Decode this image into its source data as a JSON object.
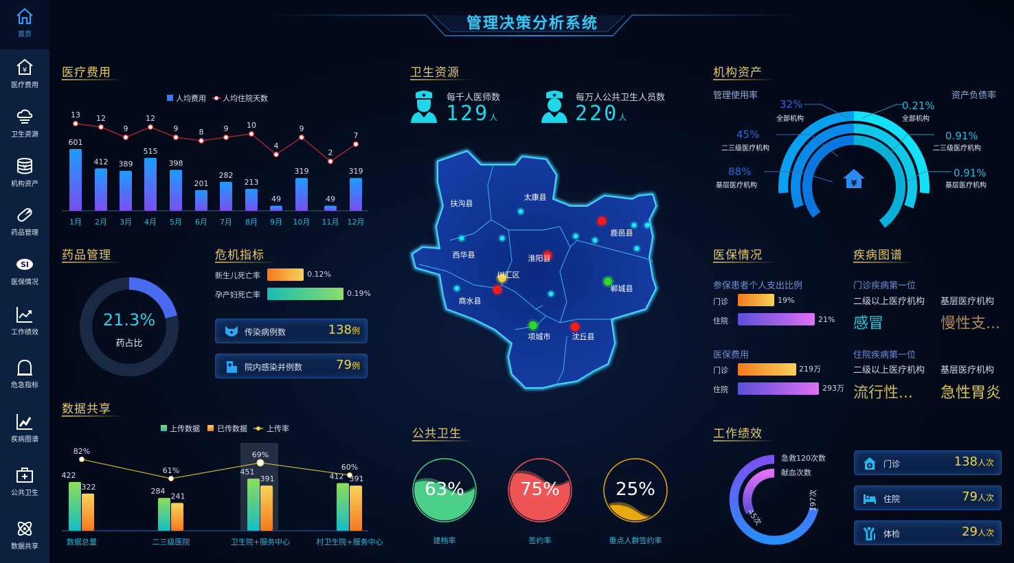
{
  "header": {
    "title": "管理决策分析系统"
  },
  "sidebar": {
    "items": [
      {
        "label": "首页",
        "icon": "home-icon",
        "active": true
      },
      {
        "label": "医疗费用",
        "icon": "house-yuan-icon"
      },
      {
        "label": "卫生资源",
        "icon": "cloud-icon"
      },
      {
        "label": "机构资产",
        "icon": "coin-stack-icon"
      },
      {
        "label": "药品管理",
        "icon": "pill-icon"
      },
      {
        "label": "医保情况",
        "icon": "si-logo-icon"
      },
      {
        "label": "工作绩效",
        "icon": "trend-chart-icon"
      },
      {
        "label": "危急指标",
        "icon": "alarm-dome-icon"
      },
      {
        "label": "疾病图谱",
        "icon": "line-graph-icon"
      },
      {
        "label": "公共卫生",
        "icon": "medical-kit-icon"
      },
      {
        "label": "数据共享",
        "icon": "atom-icon"
      }
    ]
  },
  "medical_cost": {
    "title": "医疗费用"
  },
  "health_resources": {
    "title": "卫生资源",
    "doctors": {
      "label": "每千人医师数",
      "value": "129",
      "unit": "人"
    },
    "staff": {
      "label": "每万人公共卫生人员数",
      "value": "220",
      "unit": "人"
    },
    "map": {
      "regions": [
        "扶沟县",
        "太康县",
        "西华县",
        "淮阳县",
        "川汇区",
        "商水县",
        "郸城县",
        "鹿邑县",
        "项城市",
        "沈丘县"
      ],
      "marker_colors": {
        "normal": "#22e4f0",
        "alert": "#ff1a1a",
        "good": "#2ed62e",
        "warn": "#f0d040"
      }
    }
  },
  "assets": {
    "title": "机构资产",
    "left_heading": "管理使用率",
    "right_heading": "资产负债率",
    "left": [
      {
        "value": "32%",
        "label": "全部机构"
      },
      {
        "value": "45%",
        "label": "二三级医疗机构"
      },
      {
        "value": "88%",
        "label": "基层医疗机构"
      }
    ],
    "right": [
      {
        "value": "0.21%",
        "label": "全部机构"
      },
      {
        "value": "0.91%",
        "label": "二三级医疗机构"
      },
      {
        "value": "0.91%",
        "label": "基层医疗机构"
      }
    ]
  },
  "drug": {
    "title": "药品管理",
    "value": "21.3%",
    "label": "药占比",
    "fraction": 0.213
  },
  "crisis": {
    "title": "危机指标",
    "bars": [
      {
        "label": "新生儿死亡率",
        "value": "0.12%"
      },
      {
        "label": "孕产妇死亡率",
        "value": "0.19%"
      }
    ],
    "cards": [
      {
        "label": "传染病例数",
        "value": "138",
        "unit": "例",
        "icon": "cat-face-icon"
      },
      {
        "label": "院内感染并例数",
        "value": "79",
        "unit": "例",
        "icon": "hospital-icon"
      }
    ]
  },
  "insurance": {
    "title": "医保情况",
    "ratio": {
      "heading": "参保患者个人支出比例",
      "rows": [
        {
          "label": "门诊",
          "value": "19%"
        },
        {
          "label": "住院",
          "value": "21%"
        }
      ]
    },
    "cost": {
      "heading": "医保费用",
      "rows": [
        {
          "label": "门诊",
          "value": "219万"
        },
        {
          "label": "住院",
          "value": "293万"
        }
      ]
    }
  },
  "disease": {
    "title": "疾病图谱",
    "outpatient": {
      "heading": "门诊疾病第一位",
      "col1": "二级以上医疗机构",
      "col2": "基层医疗机构",
      "v1": "感冒",
      "v2": "慢性支..."
    },
    "inpatient": {
      "heading": "住院疾病第一位",
      "col1": "二级以上医疗机构",
      "col2": "基层医疗机构",
      "v1": "流行性...",
      "v2": "急性胃炎"
    }
  },
  "data_share": {
    "title": "数据共享"
  },
  "public_health": {
    "title": "公共卫生",
    "gauges": [
      {
        "value": "63%",
        "fraction": 0.63,
        "label": "建档率",
        "color": "#4ccf88"
      },
      {
        "value": "75%",
        "fraction": 0.75,
        "label": "签约率",
        "color": "#f05555"
      },
      {
        "value": "25%",
        "fraction": 0.25,
        "label": "重点人群签约率",
        "color": "#e8a812"
      }
    ]
  },
  "performance": {
    "title": "工作绩效",
    "ring": [
      {
        "label": "急救120次数",
        "value": "197次"
      },
      {
        "label": "献血次数",
        "value": "45次"
      }
    ],
    "cards": [
      {
        "label": "门诊",
        "value": "138",
        "unit": "人次",
        "icon": "clinic-icon"
      },
      {
        "label": "住院",
        "value": "79",
        "unit": "人次",
        "icon": "bed-icon"
      },
      {
        "label": "体检",
        "value": "29",
        "unit": "人次",
        "icon": "person-checkup-icon"
      }
    ]
  },
  "chart_data": [
    {
      "type": "bar+line",
      "categories": [
        "1月",
        "2月",
        "3月",
        "4月",
        "5月",
        "6月",
        "7月",
        "8月",
        "9月",
        "10月",
        "11月",
        "12月"
      ],
      "series": [
        {
          "name": "人均费用",
          "type": "bar",
          "values": [
            601,
            412,
            389,
            515,
            398,
            201,
            282,
            213,
            49,
            319,
            49,
            319
          ]
        },
        {
          "name": "人均住院天数",
          "type": "line",
          "values": [
            13,
            12,
            9,
            12,
            9,
            8,
            9,
            10,
            4,
            9,
            2,
            7
          ]
        }
      ],
      "legend": "top-center",
      "grid": false
    },
    {
      "type": "bar+line",
      "categories": [
        "数据总量",
        "二三级医院",
        "卫生院+服务中心",
        "村卫生院+服务中心"
      ],
      "series": [
        {
          "name": "上传数据",
          "type": "bar",
          "values": [
            422,
            284,
            451,
            412
          ]
        },
        {
          "name": "已传数据",
          "type": "bar",
          "values": [
            322,
            241,
            391,
            391
          ]
        },
        {
          "name": "上传率",
          "type": "line",
          "values": [
            "82%",
            "61%",
            "69%",
            "60%"
          ]
        }
      ],
      "highlighted": "卫生院+服务中心",
      "legend": "top-center",
      "grid": false
    }
  ]
}
